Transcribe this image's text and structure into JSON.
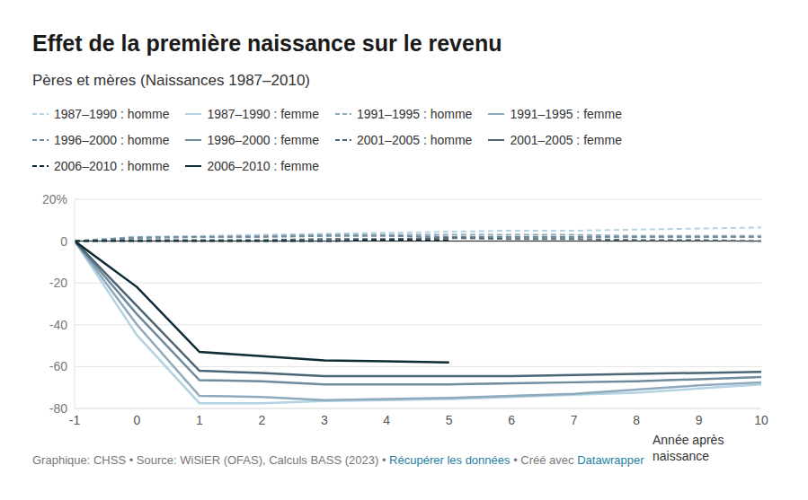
{
  "chart_data": {
    "type": "line",
    "title": "Effet de la première naissance sur le revenu",
    "subtitle": "Pères et mères (Naissances 1987–2010)",
    "x_label": "Année après naissance",
    "footer": [
      {
        "text": "Graphique: CHSS • Source: WiSiER (OFAS), Calculs BASS (2023) •"
      },
      {
        "text": "Récupérer les données",
        "color": "#1d81a2"
      },
      {
        "text": "• Créé avec"
      },
      {
        "text": "Datawrapper",
        "color": "#1d81a2"
      }
    ],
    "x": [
      -1,
      0,
      1,
      2,
      3,
      4,
      5,
      6,
      7,
      8,
      9,
      10
    ],
    "xlim": [
      -1,
      10
    ],
    "xticks": [
      -1,
      0,
      1,
      2,
      3,
      4,
      5,
      6,
      7,
      8,
      9,
      10
    ],
    "ylim": [
      -80,
      20
    ],
    "yticks": [
      -80,
      -60,
      -40,
      -20,
      0,
      {
        "value": 20,
        "label": "20%"
      }
    ],
    "grid": true,
    "series": [
      {
        "name": "1987–1990 : homme",
        "color": "#b3d3e3",
        "line_style": "dashed",
        "values": [
          0,
          2,
          2.5,
          3,
          3.5,
          4,
          4.5,
          5,
          5,
          5.5,
          6,
          6.5
        ]
      },
      {
        "name": "1987–1990 : femme",
        "color": "#b3d3e3",
        "line_style": "solid",
        "values": [
          0,
          -45,
          -77.5,
          -77.5,
          -76.5,
          -76,
          -75.5,
          -74.5,
          -73.5,
          -72.5,
          -70.5,
          -68.5
        ]
      },
      {
        "name": "1991–1995 : homme",
        "color": "#8fa9bd",
        "line_style": "dashed",
        "values": [
          0,
          2,
          2,
          2.5,
          3,
          3,
          3,
          3,
          3,
          2.5,
          2.5,
          2.5
        ]
      },
      {
        "name": "1991–1995 : femme",
        "color": "#8fa9bd",
        "line_style": "solid",
        "values": [
          0,
          -40,
          -74,
          -74.5,
          -76,
          -75.5,
          -75,
          -74,
          -73,
          -71,
          -69,
          -67.5
        ]
      },
      {
        "name": "1996–2000 : homme",
        "color": "#6f8b9c",
        "line_style": "dashed",
        "values": [
          0,
          1.5,
          2,
          2,
          2.5,
          2.5,
          2,
          2,
          2,
          2,
          2,
          2
        ]
      },
      {
        "name": "1996–2000 : femme",
        "color": "#6f8b9c",
        "line_style": "solid",
        "values": [
          0,
          -35,
          -66.5,
          -67,
          -68.5,
          -68.5,
          -68.5,
          -68,
          -67.5,
          -67,
          -66,
          -65
        ]
      },
      {
        "name": "2001–2005 : homme",
        "color": "#4c6675",
        "line_style": "dashed",
        "values": [
          0,
          0.5,
          0.5,
          0.5,
          1,
          1,
          1.5,
          1,
          1,
          0.5,
          0.5,
          0
        ]
      },
      {
        "name": "2001–2005 : femme",
        "color": "#4c6675",
        "line_style": "solid",
        "values": [
          0,
          -31,
          -62,
          -63,
          -64.5,
          -64.5,
          -64.5,
          -64.5,
          -64,
          -63.5,
          -63,
          -62.5
        ]
      },
      {
        "name": "2006–2010 : homme",
        "color": "#0d2a36",
        "line_style": "dashed",
        "values": [
          0,
          0,
          0,
          0,
          0,
          0.5,
          0.5,
          null,
          null,
          null,
          null,
          null
        ]
      },
      {
        "name": "2006–2010 : femme",
        "color": "#0d2a36",
        "line_style": "solid",
        "values": [
          0,
          -22,
          -53,
          -55,
          -57,
          -57.5,
          -58,
          null,
          null,
          null,
          null,
          null
        ]
      }
    ]
  }
}
